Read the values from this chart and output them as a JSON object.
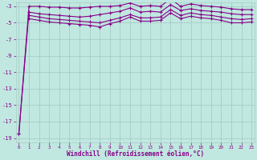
{
  "xlabel": "Windchill (Refroidissement éolien,°C)",
  "bg_color": "#c0e8e0",
  "grid_color": "#a8ccc8",
  "line_color": "#880088",
  "ylim": [
    -19.5,
    -2.5
  ],
  "xlim": [
    -0.3,
    23.3
  ],
  "yticks": [
    -19,
    -17,
    -15,
    -13,
    -11,
    -9,
    -7,
    -5,
    -3
  ],
  "xticks": [
    0,
    1,
    2,
    3,
    4,
    5,
    6,
    7,
    8,
    9,
    10,
    11,
    12,
    13,
    14,
    15,
    16,
    17,
    18,
    19,
    20,
    21,
    22,
    23
  ],
  "lines": [
    {
      "x": [
        0,
        1,
        2,
        3,
        4,
        5,
        6,
        7,
        8,
        9,
        10,
        11,
        12,
        13,
        14,
        15,
        16,
        17,
        18,
        19,
        20,
        21,
        22,
        23
      ],
      "y": [
        -18.5,
        -3.0,
        -3.0,
        -3.1,
        -3.1,
        -3.2,
        -3.2,
        -3.1,
        -3.0,
        -3.0,
        -2.9,
        -2.6,
        -3.0,
        -2.9,
        -3.0,
        -2.1,
        -3.0,
        -2.7,
        -2.9,
        -3.0,
        -3.1,
        -3.3,
        -3.4,
        -3.4
      ]
    },
    {
      "x": [
        0,
        1,
        2,
        3,
        4,
        5,
        6,
        7,
        8,
        9,
        10,
        11,
        12,
        13,
        14,
        15,
        16,
        17,
        18,
        19,
        20,
        21,
        22,
        23
      ],
      "y": [
        -18.5,
        -3.7,
        -3.9,
        -4.0,
        -4.1,
        -4.2,
        -4.3,
        -4.2,
        -4.0,
        -3.8,
        -3.6,
        -3.2,
        -3.7,
        -3.6,
        -3.7,
        -2.8,
        -3.5,
        -3.3,
        -3.5,
        -3.6,
        -3.7,
        -3.9,
        -4.0,
        -4.0
      ]
    },
    {
      "x": [
        1,
        2,
        3,
        4,
        5,
        6,
        7,
        8,
        9,
        10,
        11,
        12,
        13,
        14,
        15,
        16,
        17,
        18,
        19,
        20,
        21,
        22,
        23
      ],
      "y": [
        -4.1,
        -4.3,
        -4.5,
        -4.6,
        -4.7,
        -4.8,
        -4.9,
        -5.0,
        -4.7,
        -4.4,
        -4.0,
        -4.4,
        -4.4,
        -4.3,
        -3.4,
        -4.1,
        -3.8,
        -4.0,
        -4.1,
        -4.3,
        -4.5,
        -4.6,
        -4.5
      ]
    },
    {
      "x": [
        1,
        2,
        3,
        4,
        5,
        6,
        7,
        8,
        9,
        10,
        11,
        12,
        13,
        14,
        15,
        16,
        17,
        18,
        19,
        20,
        21,
        22,
        23
      ],
      "y": [
        -4.5,
        -4.7,
        -4.9,
        -5.0,
        -5.1,
        -5.2,
        -5.3,
        -5.5,
        -5.1,
        -4.8,
        -4.3,
        -4.8,
        -4.8,
        -4.7,
        -3.8,
        -4.5,
        -4.2,
        -4.4,
        -4.5,
        -4.7,
        -5.0,
        -5.0,
        -4.9
      ]
    }
  ]
}
